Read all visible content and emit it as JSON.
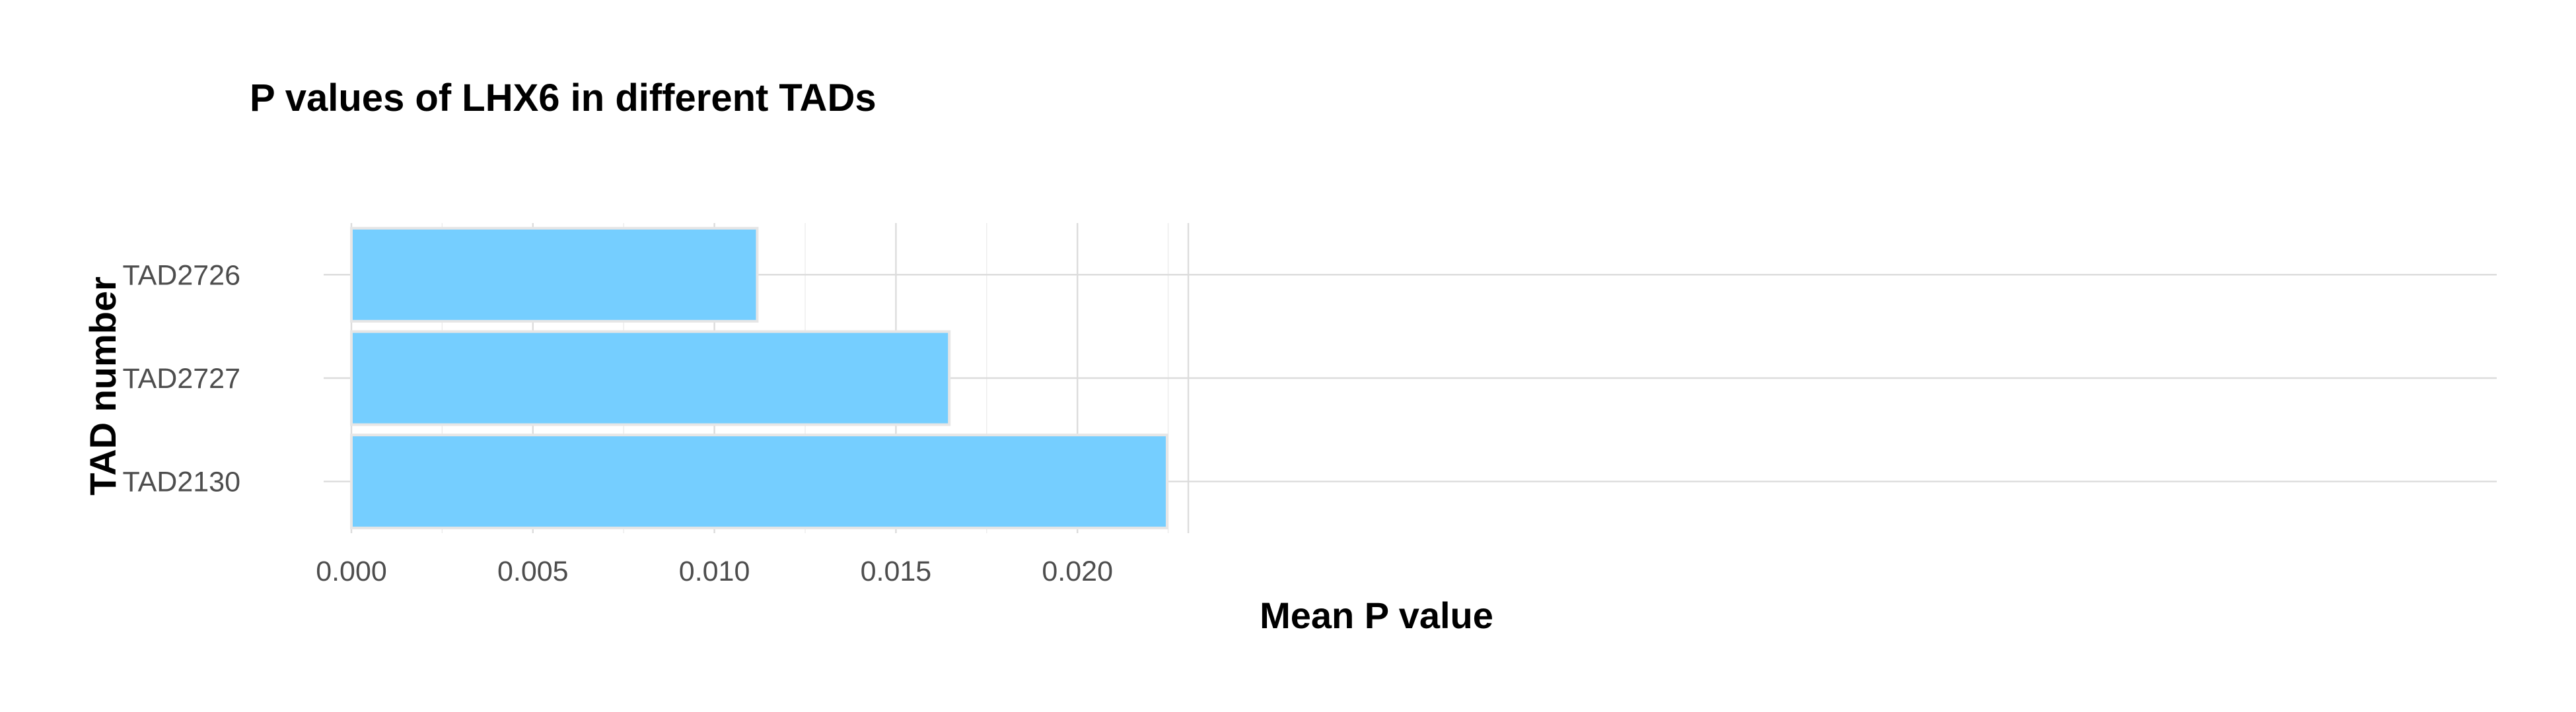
{
  "chart_data": {
    "type": "bar",
    "orientation": "horizontal",
    "title": "P values of LHX6 in different TADs",
    "xlabel": "Mean P value",
    "ylabel": "TAD number",
    "categories": [
      "TAD2726",
      "TAD2727",
      "TAD2130"
    ],
    "values": [
      0.01118,
      0.01647,
      0.02247
    ],
    "xlim": [
      0,
      0.0236
    ],
    "x_ticks": [
      "0.000",
      "0.005",
      "0.010",
      "0.015",
      "0.020"
    ],
    "grid": true,
    "legend": "none",
    "bar_color": "#75ceff"
  }
}
